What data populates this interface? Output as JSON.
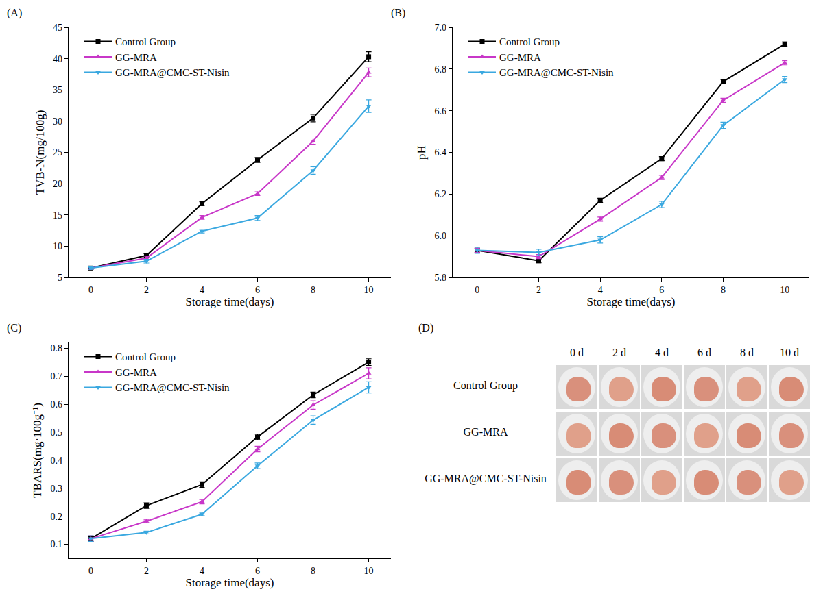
{
  "chart_data": [
    {
      "type": "line",
      "panel": "(A)",
      "x_label": "Storage time(days)",
      "y_label": "TVB-N(mg/100g)",
      "x": [
        0,
        2,
        4,
        6,
        8,
        10
      ],
      "xlim": [
        -0.8,
        10.8
      ],
      "xticks": [
        0,
        2,
        4,
        6,
        8,
        10
      ],
      "ylim": [
        5,
        45
      ],
      "yticks": [
        5,
        10,
        15,
        20,
        25,
        30,
        35,
        40,
        45
      ],
      "grid": false,
      "legend": "upper left",
      "series": [
        {
          "name": "Control Group",
          "color": "#000000",
          "marker": "square",
          "line_style": "solid",
          "values": [
            6.5,
            8.5,
            16.8,
            23.8,
            30.5,
            40.3
          ],
          "errors": [
            0.2,
            0.3,
            0.3,
            0.4,
            0.6,
            0.8
          ]
        },
        {
          "name": "GG-MRA",
          "color": "#c837c8",
          "marker": "triangle-up",
          "line_style": "solid",
          "values": [
            6.5,
            8.1,
            14.6,
            18.4,
            26.8,
            37.8
          ],
          "errors": [
            0.2,
            0.3,
            0.3,
            0.3,
            0.5,
            0.7
          ]
        },
        {
          "name": "GG-MRA@CMC-ST-Nisin",
          "color": "#3aa8e0",
          "marker": "triangle-down",
          "line_style": "solid",
          "values": [
            6.5,
            7.6,
            12.4,
            14.5,
            22.1,
            32.4
          ],
          "errors": [
            0.2,
            0.3,
            0.3,
            0.4,
            0.6,
            1.0
          ]
        }
      ]
    },
    {
      "type": "line",
      "panel": "(B)",
      "x_label": "Storage time(days)",
      "y_label": "pH",
      "x": [
        0,
        2,
        4,
        6,
        8,
        10
      ],
      "xlim": [
        -0.8,
        10.8
      ],
      "xticks": [
        0,
        2,
        4,
        6,
        8,
        10
      ],
      "ylim": [
        5.8,
        7.0
      ],
      "yticks": [
        5.8,
        {
          "value": 6,
          "label": "6.0"
        },
        6.2,
        6.4,
        6.6,
        6.8,
        {
          "value": 7,
          "label": "7.0"
        }
      ],
      "grid": false,
      "legend": "upper left",
      "series": [
        {
          "name": "Control Group",
          "color": "#000000",
          "marker": "square",
          "line_style": "solid",
          "values": [
            5.93,
            5.88,
            6.17,
            6.37,
            6.74,
            6.92
          ],
          "errors": [
            0.01,
            0.01,
            0.01,
            0.01,
            0.01,
            0.01
          ]
        },
        {
          "name": "GG-MRA",
          "color": "#c837c8",
          "marker": "triangle-up",
          "line_style": "solid",
          "values": [
            5.93,
            5.9,
            6.08,
            6.28,
            6.65,
            6.83
          ],
          "errors": [
            0.01,
            0.01,
            0.01,
            0.01,
            0.01,
            0.01
          ]
        },
        {
          "name": "GG-MRA@CMC-ST-Nisin",
          "color": "#3aa8e0",
          "marker": "triangle-down",
          "line_style": "solid",
          "values": [
            5.93,
            5.92,
            5.98,
            6.15,
            6.53,
            6.75
          ],
          "errors": [
            0.015,
            0.015,
            0.015,
            0.015,
            0.015,
            0.015
          ]
        }
      ]
    },
    {
      "type": "line",
      "panel": "(C)",
      "x_label": "Storage time(days)",
      "y_label": "TBARS(mg·100g⁻¹)",
      "x": [
        0,
        2,
        4,
        6,
        8,
        10
      ],
      "xlim": [
        -0.8,
        10.8
      ],
      "xticks": [
        0,
        2,
        4,
        6,
        8,
        10
      ],
      "ylim": [
        0.05,
        0.82
      ],
      "yticks": [
        0.1,
        0.2,
        0.3,
        0.4,
        0.5,
        0.6,
        0.7,
        0.8
      ],
      "grid": false,
      "legend": "upper left",
      "series": [
        {
          "name": "Control Group",
          "color": "#000000",
          "marker": "square",
          "line_style": "solid",
          "values": [
            0.12,
            0.238,
            0.313,
            0.483,
            0.633,
            0.75
          ],
          "errors": [
            0.01,
            0.01,
            0.01,
            0.01,
            0.01,
            0.012
          ]
        },
        {
          "name": "GG-MRA",
          "color": "#c837c8",
          "marker": "triangle-up",
          "line_style": "solid",
          "values": [
            0.12,
            0.182,
            0.252,
            0.44,
            0.597,
            0.71
          ],
          "errors": [
            0.01,
            0.005,
            0.008,
            0.01,
            0.015,
            0.02
          ]
        },
        {
          "name": "GG-MRA@CMC-ST-Nisin",
          "color": "#3aa8e0",
          "marker": "triangle-down",
          "line_style": "solid",
          "values": [
            0.12,
            0.142,
            0.207,
            0.38,
            0.543,
            0.66
          ],
          "errors": [
            0.01,
            0.005,
            0.005,
            0.01,
            0.015,
            0.02
          ]
        }
      ]
    }
  ],
  "photo_grid": {
    "panel": "(D)",
    "columns": [
      "0 d",
      "2 d",
      "4 d",
      "6 d",
      "8 d",
      "10 d"
    ],
    "rows": [
      "Control Group",
      "GG-MRA",
      "GG-MRA@CMC-ST-Nisin"
    ]
  }
}
